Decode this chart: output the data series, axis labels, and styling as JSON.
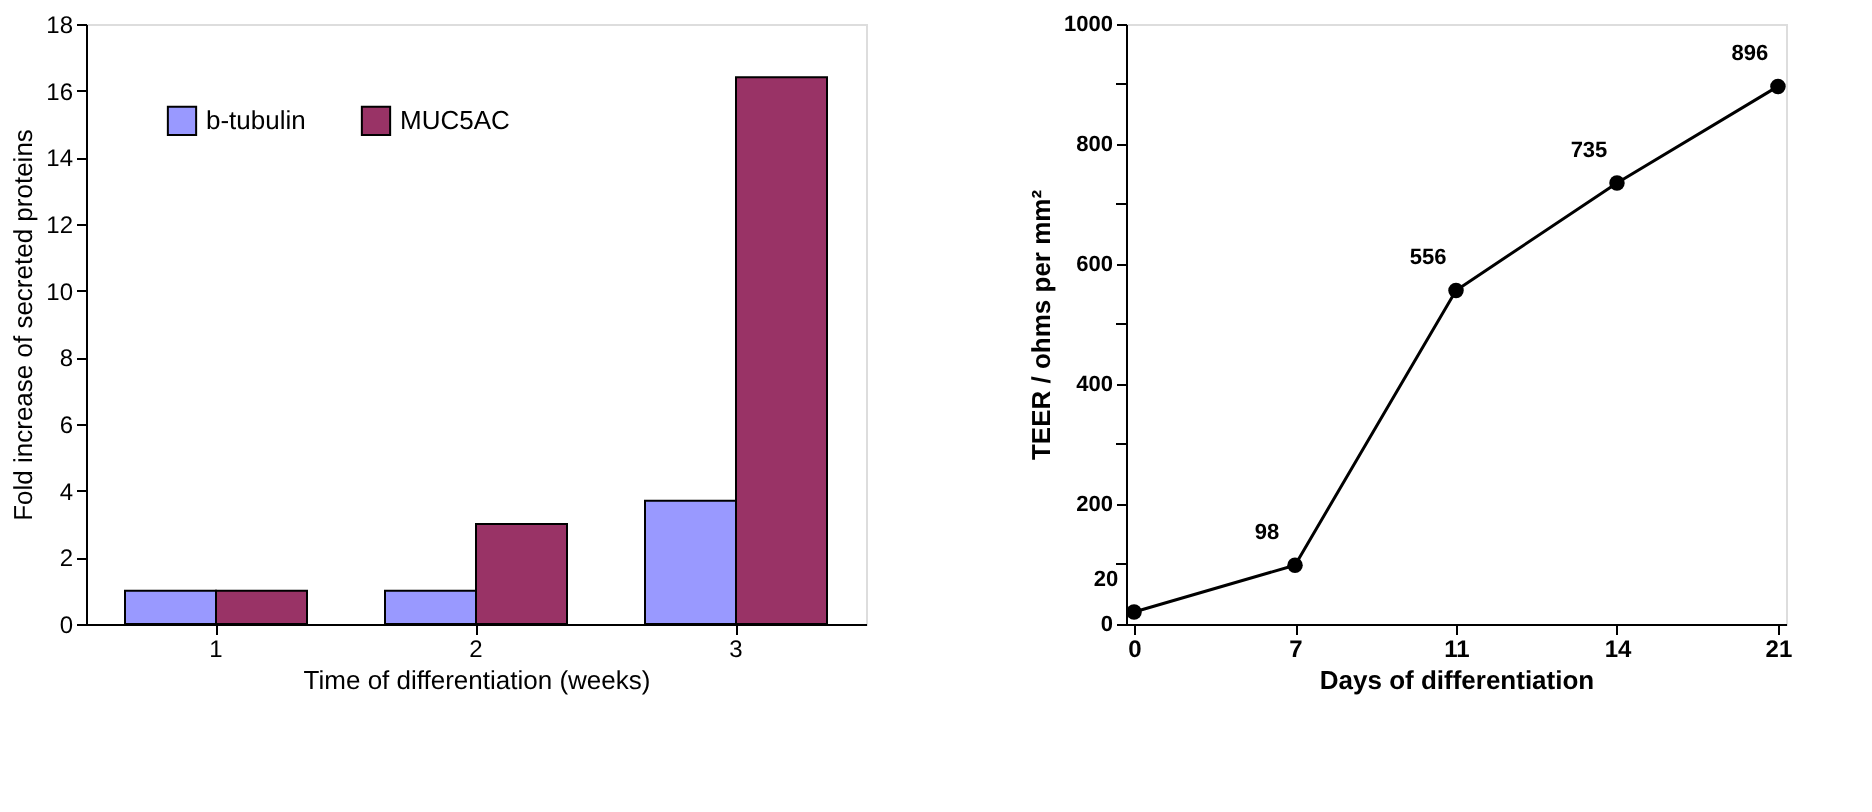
{
  "chart_data": [
    {
      "type": "bar",
      "xlabel": "Time of differentiation (weeks)",
      "ylabel": "Fold increase of secreted proteins",
      "categories": [
        "1",
        "2",
        "3"
      ],
      "series": [
        {
          "name": "b-tubulin",
          "color": "#9999ff",
          "values": [
            1,
            1,
            3.7
          ]
        },
        {
          "name": "MUC5AC",
          "color": "#993366",
          "values": [
            1,
            3,
            16.4
          ]
        }
      ],
      "ylim": [
        0,
        18
      ],
      "yticks": [
        0,
        2,
        4,
        6,
        8,
        10,
        12,
        14,
        16,
        18
      ],
      "grid": false,
      "legend": "top left"
    },
    {
      "type": "line",
      "xlabel": "Days of differentiation",
      "ylabel": "TEER / ohms per mm²",
      "categories": [
        "0",
        "7",
        "11",
        "14",
        "21"
      ],
      "series": [
        {
          "color": "#000000",
          "values": [
            20,
            98,
            556,
            735,
            896
          ]
        }
      ],
      "ylim": [
        0,
        1000
      ],
      "yticks": [
        0,
        {
          "value": 100,
          "label": null
        },
        200,
        {
          "value": 300,
          "label": null
        },
        400,
        {
          "value": 500,
          "label": null
        },
        600,
        {
          "value": 700,
          "label": null
        },
        800,
        {
          "value": 900,
          "label": null
        },
        1000
      ],
      "grid": false,
      "marker": "circle",
      "data_labels": true
    }
  ]
}
